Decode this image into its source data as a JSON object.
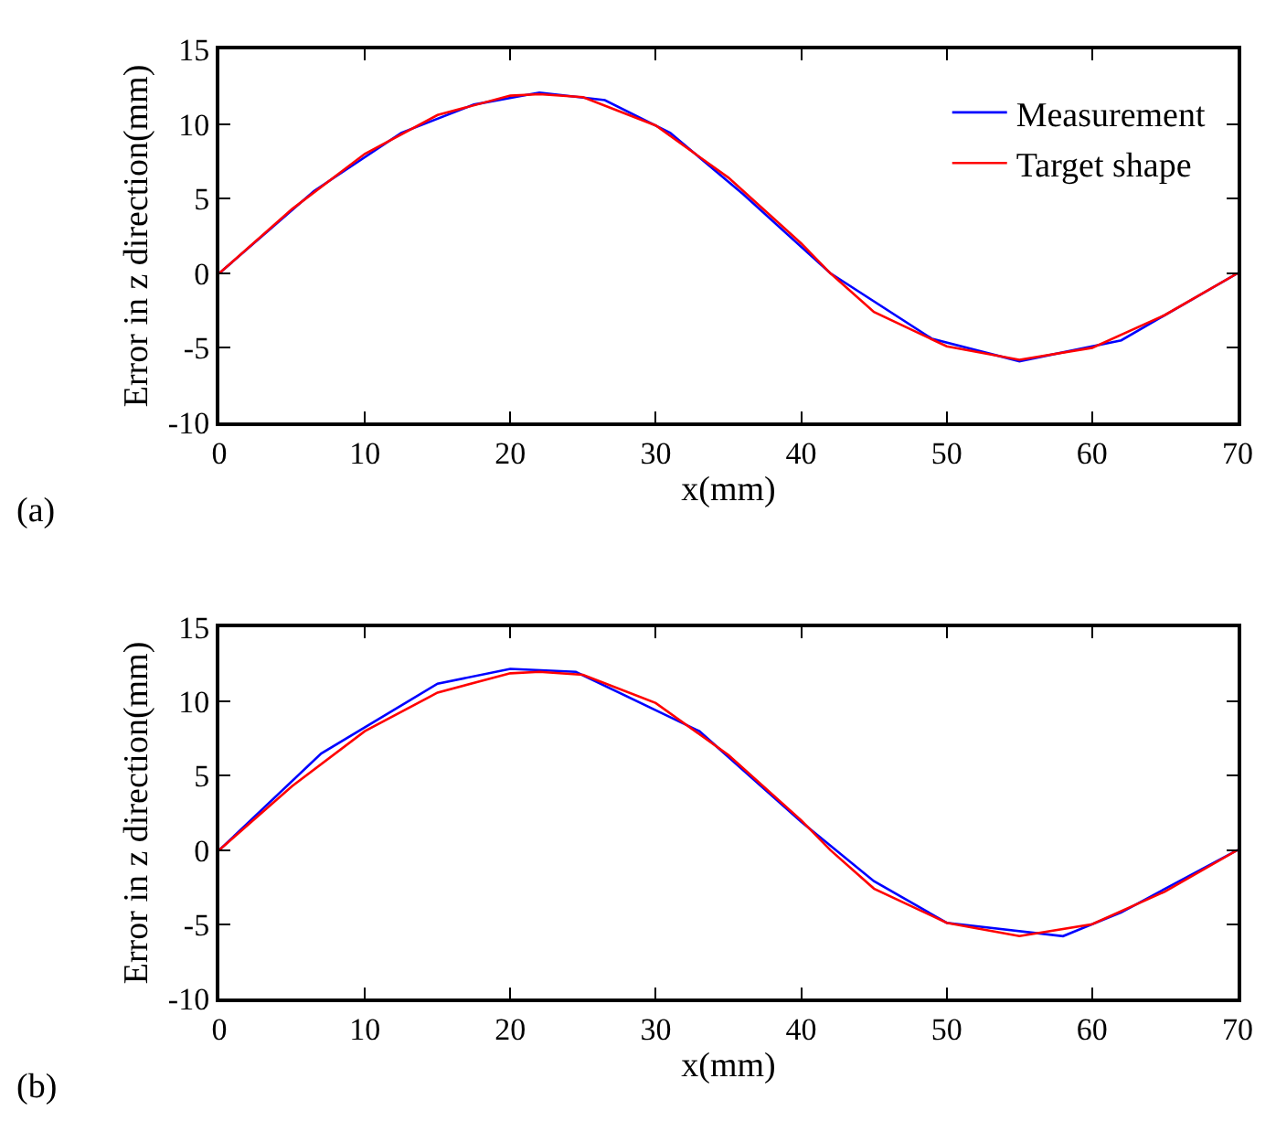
{
  "chart_data": [
    {
      "type": "line",
      "xlabel": "x(mm)",
      "ylabel": "Error in z direction(mm)",
      "annotations": [
        "(a)"
      ],
      "xlim": [
        0,
        70
      ],
      "ylim": [
        -10,
        15
      ],
      "xticks": [
        0,
        10,
        20,
        30,
        40,
        50,
        60,
        70
      ],
      "yticks": [
        -10,
        -5,
        0,
        5,
        10,
        15
      ],
      "legend": "top right",
      "marker": "none",
      "line_style": "solid",
      "series": [
        {
          "name": "Measurement",
          "color": "#0000ff",
          "x": [
            0,
            6.5,
            12.5,
            17.5,
            22,
            26.5,
            31,
            36,
            42,
            49,
            55,
            62,
            70
          ],
          "values": [
            0,
            5.5,
            9.4,
            11.3,
            12.1,
            11.6,
            9.4,
            5.3,
            0,
            -4.4,
            -5.9,
            -4.5,
            0
          ]
        },
        {
          "name": "Target shape",
          "color": "#ff0000",
          "x": [
            0,
            5,
            10,
            15,
            20,
            22,
            25,
            30,
            35,
            40,
            42,
            45,
            50,
            55,
            60,
            65,
            70
          ],
          "values": [
            0,
            4.3,
            8.0,
            10.6,
            11.9,
            12.0,
            11.8,
            9.9,
            6.4,
            2.0,
            0,
            -2.6,
            -4.9,
            -5.8,
            -5.0,
            -2.8,
            0
          ]
        }
      ]
    },
    {
      "type": "line",
      "xlabel": "x(mm)",
      "ylabel": "Error in z direction(mm)",
      "annotations": [
        "(b)"
      ],
      "xlim": [
        0,
        70
      ],
      "ylim": [
        -10,
        15
      ],
      "xticks": [
        0,
        10,
        20,
        30,
        40,
        50,
        60,
        70
      ],
      "yticks": [
        -10,
        -5,
        0,
        5,
        10,
        15
      ],
      "marker": "none",
      "line_style": "solid",
      "series": [
        {
          "color": "#0000ff",
          "x": [
            0,
            7,
            15,
            20,
            24.5,
            33,
            40,
            45,
            50,
            58,
            62,
            70
          ],
          "values": [
            0,
            6.5,
            11.2,
            12.2,
            12.0,
            8.0,
            1.9,
            -2.1,
            -4.9,
            -5.8,
            -4.2,
            0
          ]
        },
        {
          "color": "#ff0000",
          "x": [
            0,
            5,
            10,
            15,
            20,
            22,
            25,
            30,
            35,
            40,
            42,
            45,
            50,
            55,
            60,
            65,
            70
          ],
          "values": [
            0,
            4.3,
            8.0,
            10.6,
            11.9,
            12.0,
            11.8,
            9.9,
            6.4,
            2.0,
            0,
            -2.6,
            -4.9,
            -5.8,
            -5.0,
            -2.8,
            0
          ]
        }
      ]
    }
  ]
}
